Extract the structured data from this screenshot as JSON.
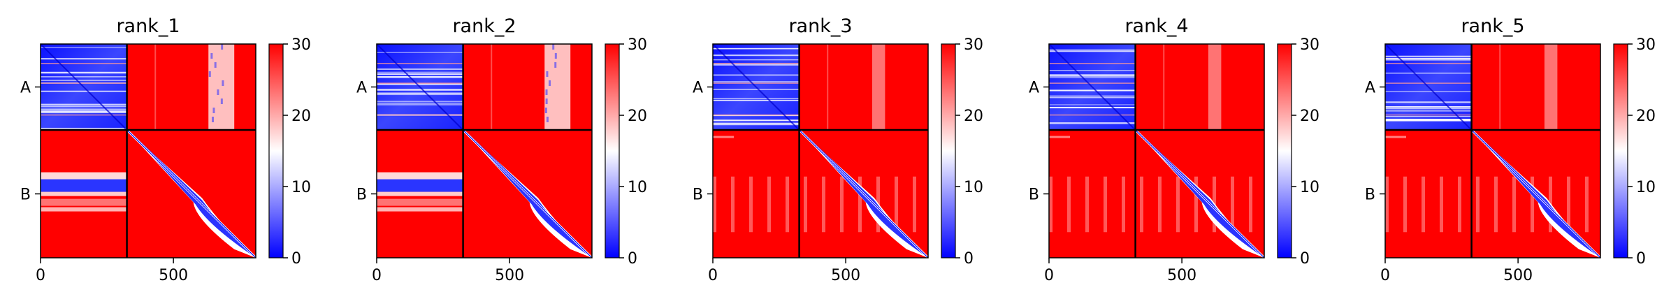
{
  "chart_data": {
    "type": "heatmap",
    "colormap": {
      "name": "bwr",
      "low": "#0000ff",
      "mid": "#ffffff",
      "high": "#ff0000",
      "vmin": 0,
      "vmax": 30
    },
    "colorbar_ticks": [
      "0",
      "10",
      "20",
      "30"
    ],
    "x_ticks": [
      {
        "value": 0,
        "label": "0"
      },
      {
        "value": 500,
        "label": "500"
      }
    ],
    "x_range": [
      0,
      810
    ],
    "boundary": 325,
    "y_ticks": [
      {
        "region": "A",
        "label": "A"
      },
      {
        "region": "B",
        "label": "B"
      }
    ],
    "panels": [
      {
        "title": "rank_1"
      },
      {
        "title": "rank_2"
      },
      {
        "title": "rank_3"
      },
      {
        "title": "rank_4"
      },
      {
        "title": "rank_5"
      }
    ]
  }
}
